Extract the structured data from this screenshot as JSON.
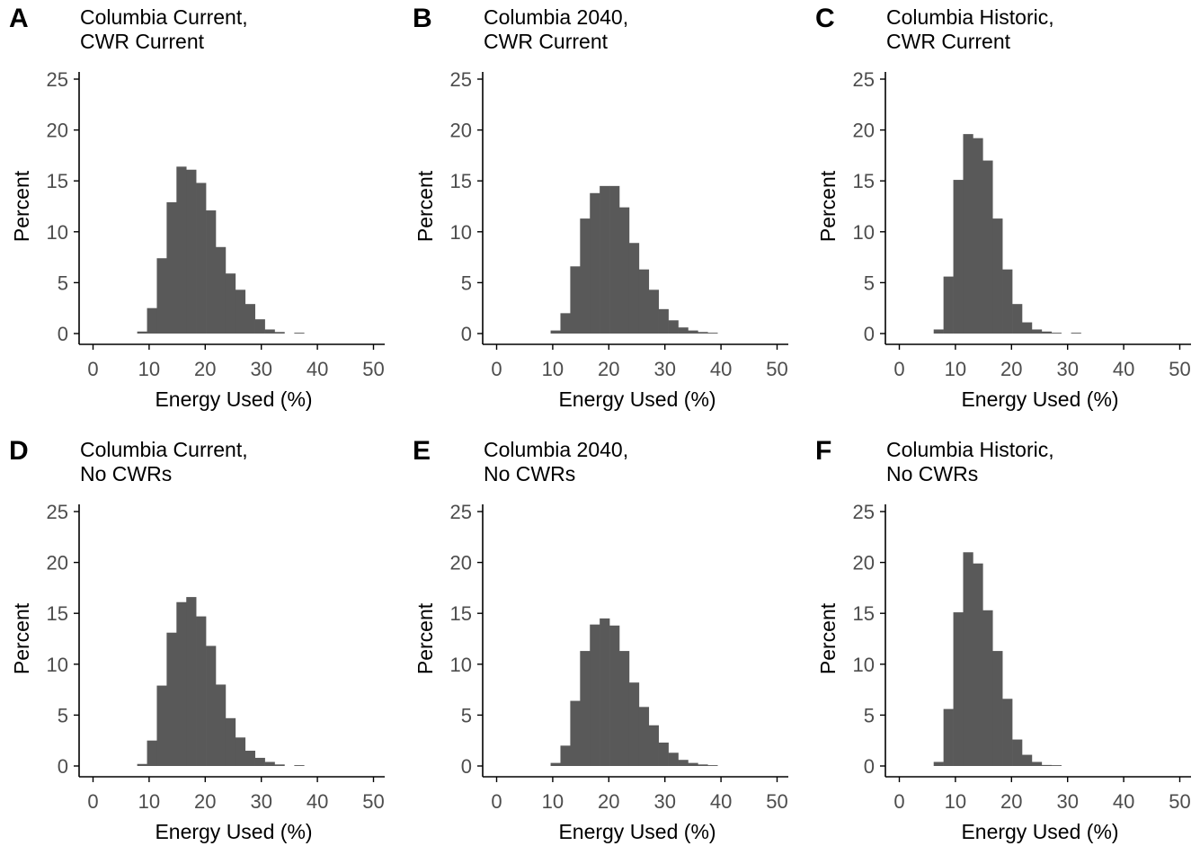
{
  "chart_data": [
    {
      "type": "bar",
      "panel_tag": "A",
      "title_lines": [
        "Columbia Current,",
        "CWR Current"
      ],
      "xlabel": "Energy Used (%)",
      "ylabel": "Percent",
      "xlim": [
        -2.5,
        52.5
      ],
      "ylim": [
        0,
        26
      ],
      "x_ticks": [
        "0",
        "10",
        "20",
        "30",
        "40",
        "50"
      ],
      "y_ticks": [
        "0",
        "5",
        "10",
        "15",
        "20",
        "25"
      ],
      "bin_width": 1.75,
      "bins": [
        {
          "x": 8.75,
          "y": 0.2
        },
        {
          "x": 10.5,
          "y": 2.5
        },
        {
          "x": 12.25,
          "y": 7.4
        },
        {
          "x": 14.0,
          "y": 12.9
        },
        {
          "x": 15.75,
          "y": 16.4
        },
        {
          "x": 17.5,
          "y": 16.1
        },
        {
          "x": 19.25,
          "y": 14.8
        },
        {
          "x": 21.0,
          "y": 12.1
        },
        {
          "x": 22.75,
          "y": 8.5
        },
        {
          "x": 24.5,
          "y": 5.9
        },
        {
          "x": 26.25,
          "y": 4.3
        },
        {
          "x": 28.0,
          "y": 2.9
        },
        {
          "x": 29.75,
          "y": 1.4
        },
        {
          "x": 31.5,
          "y": 0.4
        },
        {
          "x": 33.25,
          "y": 0.15
        },
        {
          "x": 36.75,
          "y": 0.08
        }
      ]
    },
    {
      "type": "bar",
      "panel_tag": "B",
      "title_lines": [
        "Columbia 2040,",
        "CWR Current"
      ],
      "xlabel": "Energy Used (%)",
      "ylabel": "Percent",
      "xlim": [
        -2.5,
        52.5
      ],
      "ylim": [
        0,
        26
      ],
      "x_ticks": [
        "0",
        "10",
        "20",
        "30",
        "40",
        "50"
      ],
      "y_ticks": [
        "0",
        "5",
        "10",
        "15",
        "20",
        "25"
      ],
      "bin_width": 1.75,
      "bins": [
        {
          "x": 10.5,
          "y": 0.3
        },
        {
          "x": 12.25,
          "y": 2.0
        },
        {
          "x": 14.0,
          "y": 6.6
        },
        {
          "x": 15.75,
          "y": 11.3
        },
        {
          "x": 17.5,
          "y": 13.8
        },
        {
          "x": 19.25,
          "y": 14.5
        },
        {
          "x": 21.0,
          "y": 14.5
        },
        {
          "x": 22.75,
          "y": 12.4
        },
        {
          "x": 24.5,
          "y": 8.9
        },
        {
          "x": 26.25,
          "y": 6.3
        },
        {
          "x": 28.0,
          "y": 4.3
        },
        {
          "x": 29.75,
          "y": 2.4
        },
        {
          "x": 31.5,
          "y": 1.3
        },
        {
          "x": 33.25,
          "y": 0.6
        },
        {
          "x": 35.0,
          "y": 0.3
        },
        {
          "x": 36.75,
          "y": 0.15
        },
        {
          "x": 38.5,
          "y": 0.05
        }
      ]
    },
    {
      "type": "bar",
      "panel_tag": "C",
      "title_lines": [
        "Columbia Historic,",
        "CWR Current"
      ],
      "xlabel": "Energy Used (%)",
      "ylabel": "Percent",
      "xlim": [
        -2.5,
        52.5
      ],
      "ylim": [
        0,
        26
      ],
      "x_ticks": [
        "0",
        "10",
        "20",
        "30",
        "40",
        "50"
      ],
      "y_ticks": [
        "0",
        "5",
        "10",
        "15",
        "20",
        "25"
      ],
      "bin_width": 1.75,
      "bins": [
        {
          "x": 7.0,
          "y": 0.4
        },
        {
          "x": 8.75,
          "y": 5.6
        },
        {
          "x": 10.5,
          "y": 15.1
        },
        {
          "x": 12.25,
          "y": 19.6
        },
        {
          "x": 14.0,
          "y": 19.2
        },
        {
          "x": 15.75,
          "y": 17.0
        },
        {
          "x": 17.5,
          "y": 11.3
        },
        {
          "x": 19.25,
          "y": 6.3
        },
        {
          "x": 21.0,
          "y": 2.9
        },
        {
          "x": 22.75,
          "y": 1.1
        },
        {
          "x": 24.5,
          "y": 0.4
        },
        {
          "x": 26.25,
          "y": 0.2
        },
        {
          "x": 28.0,
          "y": 0.05
        },
        {
          "x": 31.5,
          "y": 0.05
        }
      ]
    },
    {
      "type": "bar",
      "panel_tag": "D",
      "title_lines": [
        "Columbia Current,",
        "No CWRs"
      ],
      "xlabel": "Energy Used (%)",
      "ylabel": "Percent",
      "xlim": [
        -2.5,
        52.5
      ],
      "ylim": [
        0,
        26
      ],
      "x_ticks": [
        "0",
        "10",
        "20",
        "30",
        "40",
        "50"
      ],
      "y_ticks": [
        "0",
        "5",
        "10",
        "15",
        "20",
        "25"
      ],
      "bin_width": 1.75,
      "bins": [
        {
          "x": 8.75,
          "y": 0.2
        },
        {
          "x": 10.5,
          "y": 2.5
        },
        {
          "x": 12.25,
          "y": 7.9
        },
        {
          "x": 14.0,
          "y": 13.1
        },
        {
          "x": 15.75,
          "y": 16.1
        },
        {
          "x": 17.5,
          "y": 16.6
        },
        {
          "x": 19.25,
          "y": 14.7
        },
        {
          "x": 21.0,
          "y": 11.8
        },
        {
          "x": 22.75,
          "y": 8.0
        },
        {
          "x": 24.5,
          "y": 4.7
        },
        {
          "x": 26.25,
          "y": 2.8
        },
        {
          "x": 28.0,
          "y": 1.5
        },
        {
          "x": 29.75,
          "y": 0.8
        },
        {
          "x": 31.5,
          "y": 0.4
        },
        {
          "x": 33.25,
          "y": 0.15
        },
        {
          "x": 36.75,
          "y": 0.08
        }
      ]
    },
    {
      "type": "bar",
      "panel_tag": "E",
      "title_lines": [
        "Columbia 2040,",
        "No CWRs"
      ],
      "xlabel": "Energy Used (%)",
      "ylabel": "Percent",
      "xlim": [
        -2.5,
        52.5
      ],
      "ylim": [
        0,
        26
      ],
      "x_ticks": [
        "0",
        "10",
        "20",
        "30",
        "40",
        "50"
      ],
      "y_ticks": [
        "0",
        "5",
        "10",
        "15",
        "20",
        "25"
      ],
      "bin_width": 1.75,
      "bins": [
        {
          "x": 10.5,
          "y": 0.3
        },
        {
          "x": 12.25,
          "y": 2.0
        },
        {
          "x": 14.0,
          "y": 6.4
        },
        {
          "x": 15.75,
          "y": 11.3
        },
        {
          "x": 17.5,
          "y": 13.9
        },
        {
          "x": 19.25,
          "y": 14.5
        },
        {
          "x": 21.0,
          "y": 13.8
        },
        {
          "x": 22.75,
          "y": 11.3
        },
        {
          "x": 24.5,
          "y": 8.2
        },
        {
          "x": 26.25,
          "y": 5.8
        },
        {
          "x": 28.0,
          "y": 4.0
        },
        {
          "x": 29.75,
          "y": 2.3
        },
        {
          "x": 31.5,
          "y": 1.3
        },
        {
          "x": 33.25,
          "y": 0.6
        },
        {
          "x": 35.0,
          "y": 0.3
        },
        {
          "x": 36.75,
          "y": 0.15
        },
        {
          "x": 38.5,
          "y": 0.05
        }
      ]
    },
    {
      "type": "bar",
      "panel_tag": "F",
      "title_lines": [
        "Columbia Historic,",
        "No CWRs"
      ],
      "xlabel": "Energy Used (%)",
      "ylabel": "Percent",
      "xlim": [
        -2.5,
        52.5
      ],
      "ylim": [
        0,
        26
      ],
      "x_ticks": [
        "0",
        "10",
        "20",
        "30",
        "40",
        "50"
      ],
      "y_ticks": [
        "0",
        "5",
        "10",
        "15",
        "20",
        "25"
      ],
      "bin_width": 1.75,
      "bins": [
        {
          "x": 7.0,
          "y": 0.4
        },
        {
          "x": 8.75,
          "y": 5.6
        },
        {
          "x": 10.5,
          "y": 15.1
        },
        {
          "x": 12.25,
          "y": 21.0
        },
        {
          "x": 14.0,
          "y": 19.9
        },
        {
          "x": 15.75,
          "y": 15.3
        },
        {
          "x": 17.5,
          "y": 11.3
        },
        {
          "x": 19.25,
          "y": 6.6
        },
        {
          "x": 21.0,
          "y": 2.6
        },
        {
          "x": 22.75,
          "y": 1.1
        },
        {
          "x": 24.5,
          "y": 0.4
        },
        {
          "x": 26.25,
          "y": 0.1
        },
        {
          "x": 28.0,
          "y": 0.05
        }
      ]
    }
  ],
  "colors": {
    "bar": "#595959",
    "axis": "#000000",
    "tick_label": "#4d4d4d"
  }
}
